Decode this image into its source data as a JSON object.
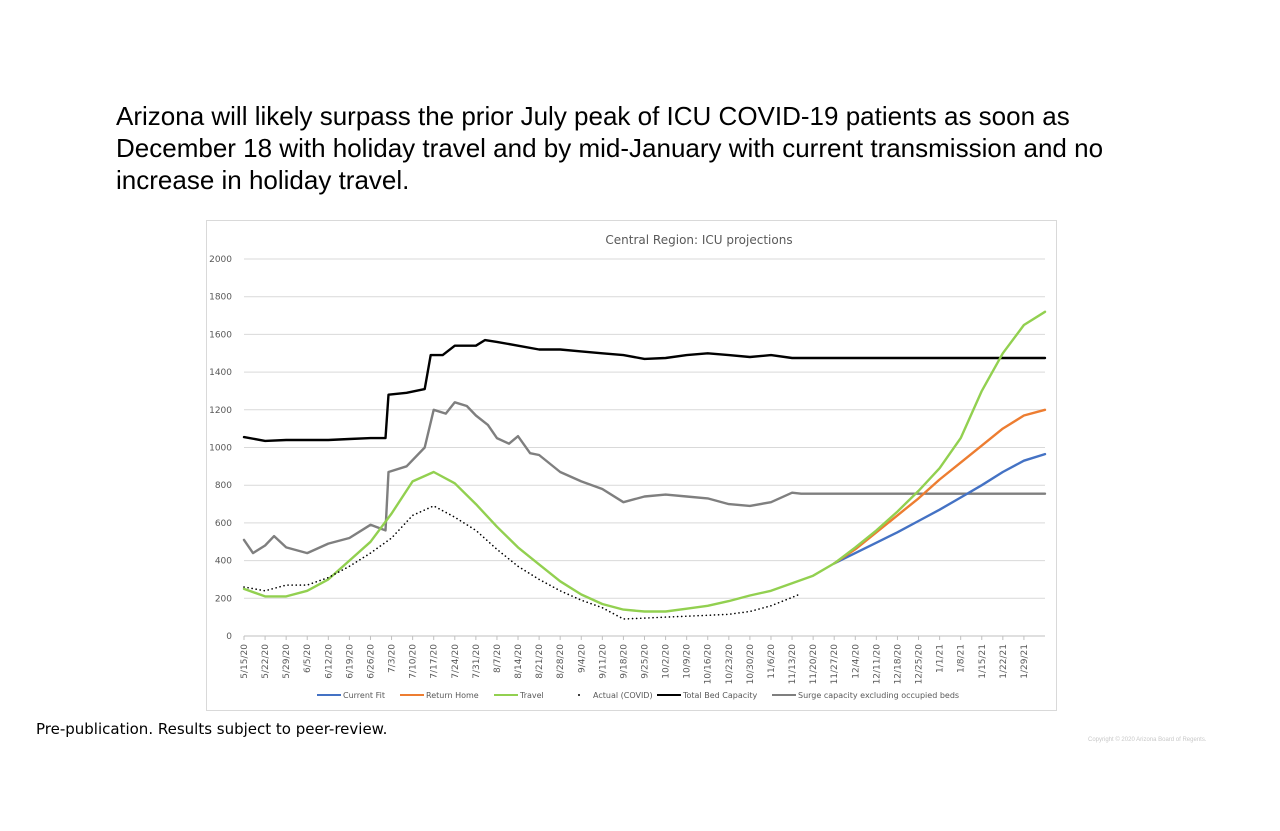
{
  "headline": "Arizona will likely surpass the prior July peak of ICU COVID-19 patients as soon as December 18 with holiday travel and by mid-January with current transmission and no increase in holiday travel.",
  "footnote": "Pre-publication.  Results subject to peer-review.",
  "copyright": "Copyright © 2020  Arizona Board of Regents.",
  "chart_data": {
    "type": "line",
    "title": "Central Region: ICU projections",
    "xlabel": "",
    "ylabel": "",
    "ylim": [
      0,
      2000
    ],
    "yticks": [
      0,
      200,
      400,
      600,
      800,
      1000,
      1200,
      1400,
      1600,
      1800,
      2000
    ],
    "grid": true,
    "legend_position": "bottom",
    "x_start": "5/15/20",
    "x_end": "2/5/21",
    "x_ticks": [
      "5/15/20",
      "5/22/20",
      "5/29/20",
      "6/5/20",
      "6/12/20",
      "6/19/20",
      "6/26/20",
      "7/3/20",
      "7/10/20",
      "7/17/20",
      "7/24/20",
      "7/31/20",
      "8/7/20",
      "8/14/20",
      "8/21/20",
      "8/28/20",
      "9/4/20",
      "9/11/20",
      "9/18/20",
      "9/25/20",
      "10/2/20",
      "10/9/20",
      "10/16/20",
      "10/23/20",
      "10/30/20",
      "11/6/20",
      "11/13/20",
      "11/20/20",
      "11/27/20",
      "12/4/20",
      "12/11/20",
      "12/18/20",
      "12/25/20",
      "1/1/21",
      "1/8/21",
      "1/15/21",
      "1/22/21",
      "1/29/21"
    ],
    "series": [
      {
        "name": "Current Fit",
        "color": "#4472c4",
        "style": "solid",
        "points": [
          [
            "11/27/20",
            385
          ],
          [
            "12/4/20",
            440
          ],
          [
            "12/11/20",
            495
          ],
          [
            "12/18/20",
            550
          ],
          [
            "12/25/20",
            610
          ],
          [
            "1/1/21",
            670
          ],
          [
            "1/8/21",
            735
          ],
          [
            "1/15/21",
            800
          ],
          [
            "1/22/21",
            870
          ],
          [
            "1/29/21",
            930
          ],
          [
            "2/5/21",
            965
          ]
        ]
      },
      {
        "name": "Return Home",
        "color": "#ed7d31",
        "style": "solid",
        "points": [
          [
            "11/27/20",
            385
          ],
          [
            "12/4/20",
            460
          ],
          [
            "12/11/20",
            550
          ],
          [
            "12/18/20",
            640
          ],
          [
            "12/25/20",
            730
          ],
          [
            "1/1/21",
            830
          ],
          [
            "1/8/21",
            920
          ],
          [
            "1/15/21",
            1010
          ],
          [
            "1/22/21",
            1100
          ],
          [
            "1/29/21",
            1170
          ],
          [
            "2/5/21",
            1200
          ]
        ]
      },
      {
        "name": "Travel",
        "color": "#92d050",
        "style": "solid",
        "points": [
          [
            "5/15/20",
            250
          ],
          [
            "5/22/20",
            210
          ],
          [
            "5/29/20",
            210
          ],
          [
            "6/5/20",
            240
          ],
          [
            "6/12/20",
            300
          ],
          [
            "6/19/20",
            400
          ],
          [
            "6/26/20",
            500
          ],
          [
            "7/3/20",
            650
          ],
          [
            "7/10/20",
            820
          ],
          [
            "7/17/20",
            870
          ],
          [
            "7/24/20",
            810
          ],
          [
            "7/31/20",
            700
          ],
          [
            "8/7/20",
            580
          ],
          [
            "8/14/20",
            470
          ],
          [
            "8/21/20",
            380
          ],
          [
            "8/28/20",
            290
          ],
          [
            "9/4/20",
            220
          ],
          [
            "9/11/20",
            170
          ],
          [
            "9/18/20",
            140
          ],
          [
            "9/25/20",
            130
          ],
          [
            "10/2/20",
            130
          ],
          [
            "10/9/20",
            145
          ],
          [
            "10/16/20",
            160
          ],
          [
            "10/23/20",
            185
          ],
          [
            "10/30/20",
            215
          ],
          [
            "11/6/20",
            240
          ],
          [
            "11/13/20",
            280
          ],
          [
            "11/20/20",
            320
          ],
          [
            "11/27/20",
            385
          ],
          [
            "12/4/20",
            470
          ],
          [
            "12/11/20",
            560
          ],
          [
            "12/18/20",
            660
          ],
          [
            "12/25/20",
            770
          ],
          [
            "1/1/21",
            890
          ],
          [
            "1/8/21",
            1050
          ],
          [
            "1/15/21",
            1300
          ],
          [
            "1/22/21",
            1500
          ],
          [
            "1/29/21",
            1650
          ],
          [
            "2/5/21",
            1720
          ]
        ]
      },
      {
        "name": "Actual (COVID)",
        "color": "#000000",
        "style": "dotted",
        "points": [
          [
            "5/15/20",
            260
          ],
          [
            "5/22/20",
            240
          ],
          [
            "5/29/20",
            270
          ],
          [
            "6/5/20",
            270
          ],
          [
            "6/12/20",
            310
          ],
          [
            "6/19/20",
            370
          ],
          [
            "6/26/20",
            440
          ],
          [
            "7/3/20",
            520
          ],
          [
            "7/10/20",
            640
          ],
          [
            "7/17/20",
            690
          ],
          [
            "7/24/20",
            630
          ],
          [
            "7/31/20",
            560
          ],
          [
            "8/7/20",
            460
          ],
          [
            "8/14/20",
            370
          ],
          [
            "8/21/20",
            300
          ],
          [
            "8/28/20",
            240
          ],
          [
            "9/4/20",
            190
          ],
          [
            "9/11/20",
            150
          ],
          [
            "9/18/20",
            90
          ],
          [
            "9/25/20",
            95
          ],
          [
            "10/2/20",
            100
          ],
          [
            "10/9/20",
            105
          ],
          [
            "10/16/20",
            110
          ],
          [
            "10/23/20",
            115
          ],
          [
            "10/30/20",
            130
          ],
          [
            "11/6/20",
            160
          ],
          [
            "11/13/20",
            205
          ],
          [
            "11/16/20",
            225
          ]
        ]
      },
      {
        "name": "Total Bed Capacity",
        "color": "#000000",
        "style": "solid",
        "points": [
          [
            "5/15/20",
            1055
          ],
          [
            "5/22/20",
            1035
          ],
          [
            "5/29/20",
            1040
          ],
          [
            "6/5/20",
            1040
          ],
          [
            "6/12/20",
            1040
          ],
          [
            "6/19/20",
            1045
          ],
          [
            "6/26/20",
            1050
          ],
          [
            "7/1/20",
            1050
          ],
          [
            "7/2/20",
            1280
          ],
          [
            "7/8/20",
            1290
          ],
          [
            "7/14/20",
            1310
          ],
          [
            "7/16/20",
            1490
          ],
          [
            "7/20/20",
            1490
          ],
          [
            "7/24/20",
            1540
          ],
          [
            "7/31/20",
            1540
          ],
          [
            "8/3/20",
            1570
          ],
          [
            "8/7/20",
            1560
          ],
          [
            "8/14/20",
            1540
          ],
          [
            "8/21/20",
            1520
          ],
          [
            "8/28/20",
            1520
          ],
          [
            "9/4/20",
            1510
          ],
          [
            "9/11/20",
            1500
          ],
          [
            "9/18/20",
            1490
          ],
          [
            "9/25/20",
            1470
          ],
          [
            "10/2/20",
            1475
          ],
          [
            "10/9/20",
            1490
          ],
          [
            "10/16/20",
            1500
          ],
          [
            "10/23/20",
            1490
          ],
          [
            "10/30/20",
            1480
          ],
          [
            "11/6/20",
            1490
          ],
          [
            "11/13/20",
            1475
          ],
          [
            "2/5/21",
            1475
          ]
        ]
      },
      {
        "name": "Surge capacity excluding occupied beds",
        "color": "#7f7f7f",
        "style": "solid",
        "points": [
          [
            "5/15/20",
            510
          ],
          [
            "5/18/20",
            440
          ],
          [
            "5/22/20",
            480
          ],
          [
            "5/25/20",
            530
          ],
          [
            "5/29/20",
            470
          ],
          [
            "6/5/20",
            440
          ],
          [
            "6/12/20",
            490
          ],
          [
            "6/19/20",
            520
          ],
          [
            "6/26/20",
            590
          ],
          [
            "7/1/20",
            560
          ],
          [
            "7/2/20",
            870
          ],
          [
            "7/8/20",
            900
          ],
          [
            "7/14/20",
            1000
          ],
          [
            "7/17/20",
            1200
          ],
          [
            "7/21/20",
            1180
          ],
          [
            "7/24/20",
            1240
          ],
          [
            "7/28/20",
            1220
          ],
          [
            "7/31/20",
            1170
          ],
          [
            "8/4/20",
            1120
          ],
          [
            "8/7/20",
            1050
          ],
          [
            "8/11/20",
            1020
          ],
          [
            "8/14/20",
            1060
          ],
          [
            "8/18/20",
            970
          ],
          [
            "8/21/20",
            960
          ],
          [
            "8/28/20",
            870
          ],
          [
            "9/4/20",
            820
          ],
          [
            "9/11/20",
            780
          ],
          [
            "9/18/20",
            710
          ],
          [
            "9/25/20",
            740
          ],
          [
            "10/2/20",
            750
          ],
          [
            "10/9/20",
            740
          ],
          [
            "10/16/20",
            730
          ],
          [
            "10/23/20",
            700
          ],
          [
            "10/30/20",
            690
          ],
          [
            "11/6/20",
            710
          ],
          [
            "11/13/20",
            760
          ],
          [
            "11/16/20",
            755
          ],
          [
            "2/5/21",
            755
          ]
        ]
      }
    ]
  }
}
